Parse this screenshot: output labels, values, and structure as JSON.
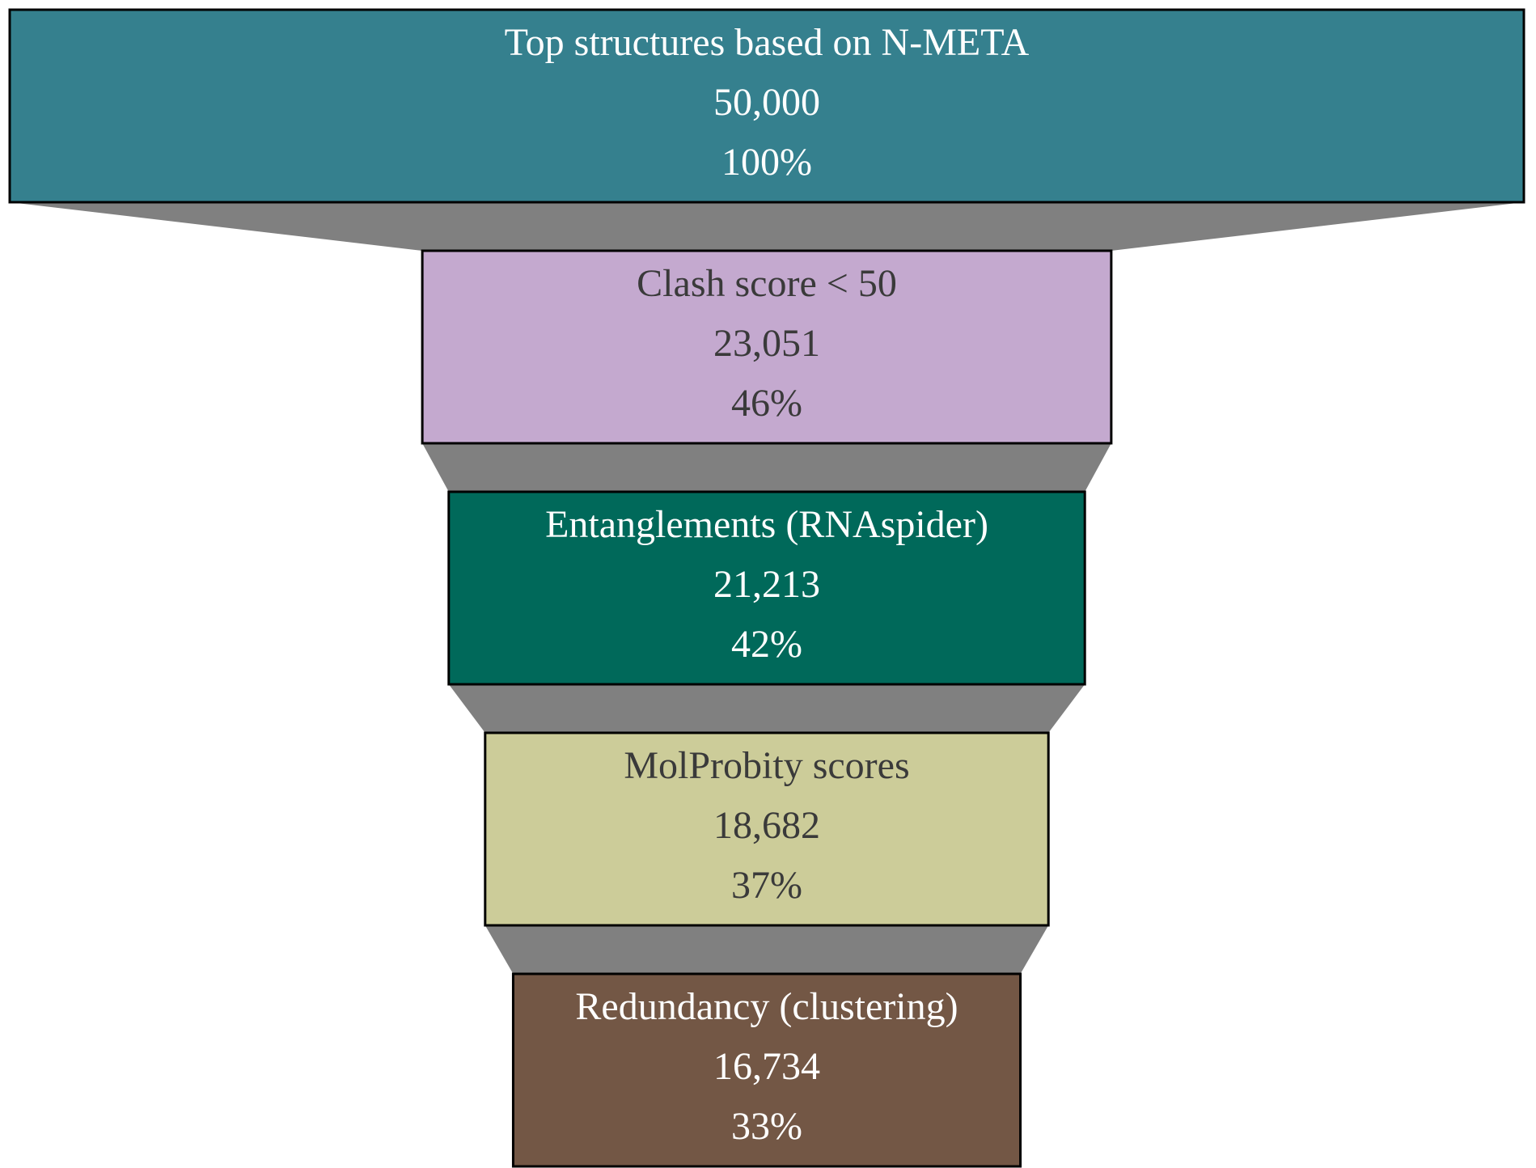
{
  "chart_data": {
    "type": "funnel",
    "title": "",
    "connector_color": "#808080",
    "border_color": "#000000",
    "max_value": 50000,
    "stages": [
      {
        "label": "Top structures based on N-META",
        "value": 50000,
        "value_text": "50,000",
        "percent": 100,
        "percent_text": "100%",
        "fill": "#35808E",
        "text_color": "#FFFFFF"
      },
      {
        "label": "Clash score < 50",
        "value": 23051,
        "value_text": "23,051",
        "percent": 46,
        "percent_text": "46%",
        "fill": "#C4A9CF",
        "text_color": "#3A3A3A"
      },
      {
        "label": "Entanglements (RNAspider)",
        "value": 21213,
        "value_text": "21,213",
        "percent": 42,
        "percent_text": "42%",
        "fill": "#00695A",
        "text_color": "#FFFFFF"
      },
      {
        "label": "MolProbity scores",
        "value": 18682,
        "value_text": "18,682",
        "percent": 37,
        "percent_text": "37%",
        "fill": "#CCCC99",
        "text_color": "#3A3A3A"
      },
      {
        "label": "Redundancy (clustering)",
        "value": 16734,
        "value_text": "16,734",
        "percent": 33,
        "percent_text": "33%",
        "fill": "#735745",
        "text_color": "#FFFFFF"
      }
    ]
  }
}
